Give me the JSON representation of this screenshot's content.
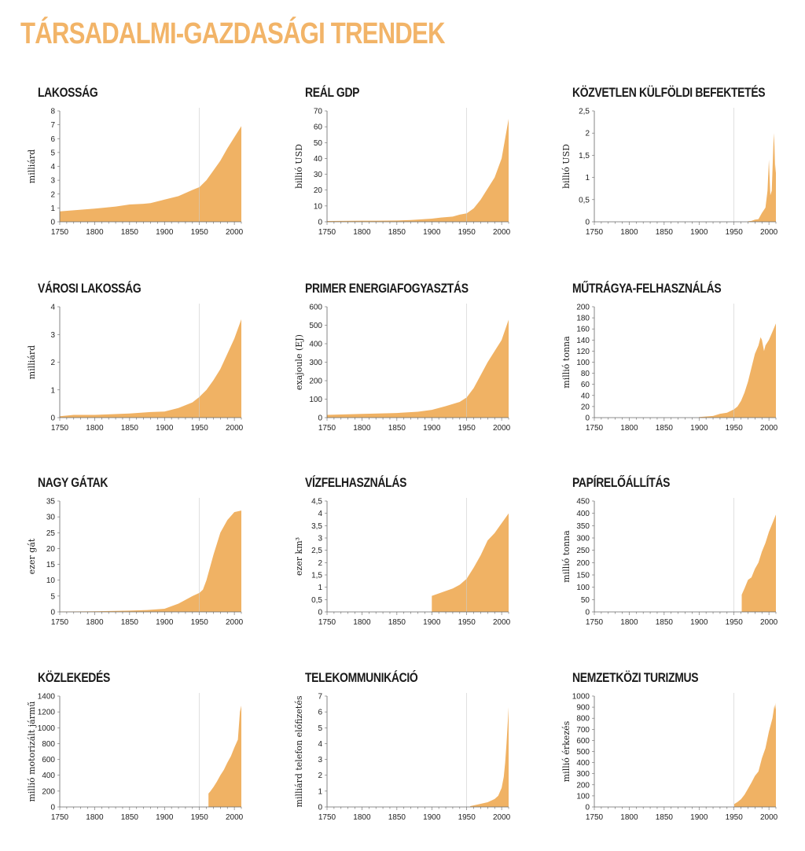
{
  "title": "TÁRSADALMI-GAZDASÁGI TRENDEK",
  "colors": {
    "title": "#f2b468",
    "fill": "#f0b264",
    "axis": "#666666",
    "ref_line": "#cccccc"
  },
  "chart_data": [
    {
      "type": "area",
      "title": "LAKOSSÁG",
      "ylabel": "milliárd",
      "xlim": [
        1750,
        2010
      ],
      "ylim": [
        0,
        8
      ],
      "xticks": [
        1750,
        1800,
        1850,
        1900,
        1950,
        2000
      ],
      "yticks": [
        {
          "v": 0,
          "label": "0"
        },
        {
          "v": 1,
          "label": "1"
        },
        {
          "v": 2,
          "label": "2"
        },
        {
          "v": 3,
          "label": "3"
        },
        {
          "v": 4,
          "label": "4"
        },
        {
          "v": 5,
          "label": "5"
        },
        {
          "v": 6,
          "label": "6"
        },
        {
          "v": 7,
          "label": "7"
        },
        {
          "v": 8,
          "label": "8"
        }
      ],
      "reference_x": 1950,
      "x": [
        1750,
        1800,
        1830,
        1850,
        1870,
        1880,
        1900,
        1920,
        1940,
        1950,
        1960,
        1970,
        1980,
        1990,
        2000,
        2010
      ],
      "y": [
        0.75,
        0.95,
        1.1,
        1.25,
        1.3,
        1.35,
        1.6,
        1.85,
        2.3,
        2.5,
        3.0,
        3.7,
        4.4,
        5.3,
        6.1,
        6.9
      ]
    },
    {
      "type": "area",
      "title": "REÁL GDP",
      "ylabel": "billió USD",
      "xlim": [
        1750,
        2010
      ],
      "ylim": [
        0,
        70
      ],
      "xticks": [
        1750,
        1800,
        1850,
        1900,
        1950,
        2000
      ],
      "yticks": [
        {
          "v": 0,
          "label": "0"
        },
        {
          "v": 10,
          "label": "10"
        },
        {
          "v": 20,
          "label": "20"
        },
        {
          "v": 30,
          "label": "30"
        },
        {
          "v": 40,
          "label": "40"
        },
        {
          "v": 50,
          "label": "50"
        },
        {
          "v": 60,
          "label": "60"
        },
        {
          "v": 70,
          "label": "70"
        }
      ],
      "reference_x": 1950,
      "x": [
        1750,
        1800,
        1820,
        1850,
        1870,
        1900,
        1913,
        1930,
        1940,
        1950,
        1960,
        1970,
        1980,
        1990,
        2000,
        2010
      ],
      "y": [
        0.5,
        0.7,
        0.7,
        0.8,
        1.1,
        2.0,
        2.7,
        3.3,
        4.5,
        5.3,
        8.5,
        14,
        21,
        28,
        40,
        65
      ]
    },
    {
      "type": "area",
      "title": "KÖZVETLEN KÜLFÖLDI BEFEKTETÉS",
      "ylabel": "billió USD",
      "xlim": [
        1750,
        2010
      ],
      "ylim": [
        0,
        2.5
      ],
      "xticks": [
        1750,
        1800,
        1850,
        1900,
        1950,
        2000
      ],
      "yticks": [
        {
          "v": 0,
          "label": "0"
        },
        {
          "v": 0.5,
          "label": "0,5"
        },
        {
          "v": 1,
          "label": "1"
        },
        {
          "v": 1.5,
          "label": "1,5"
        },
        {
          "v": 2,
          "label": "2"
        },
        {
          "v": 2.5,
          "label": "2,5"
        }
      ],
      "reference_x": 1950,
      "x": [
        1970,
        1975,
        1980,
        1985,
        1990,
        1995,
        1998,
        2000,
        2002,
        2004,
        2007,
        2008,
        2009,
        2010
      ],
      "y": [
        0.01,
        0.02,
        0.05,
        0.06,
        0.2,
        0.32,
        0.7,
        1.4,
        0.6,
        0.7,
        2.0,
        1.7,
        1.1,
        1.3
      ]
    },
    {
      "type": "area",
      "title": "VÁROSI LAKOSSÁG",
      "ylabel": "milliárd",
      "xlim": [
        1750,
        2010
      ],
      "ylim": [
        0,
        4
      ],
      "xticks": [
        1750,
        1800,
        1850,
        1900,
        1950,
        2000
      ],
      "yticks": [
        {
          "v": 0,
          "label": "0"
        },
        {
          "v": 1,
          "label": "1"
        },
        {
          "v": 2,
          "label": "2"
        },
        {
          "v": 3,
          "label": "3"
        },
        {
          "v": 4,
          "label": "4"
        }
      ],
      "reference_x": 1950,
      "x": [
        1750,
        1770,
        1800,
        1850,
        1880,
        1900,
        1920,
        1940,
        1950,
        1960,
        1970,
        1980,
        1990,
        2000,
        2010
      ],
      "y": [
        0.05,
        0.1,
        0.1,
        0.15,
        0.2,
        0.22,
        0.35,
        0.55,
        0.75,
        1.0,
        1.35,
        1.75,
        2.3,
        2.85,
        3.55
      ]
    },
    {
      "type": "area",
      "title": "PRIMER ENERGIAFOGYASZTÁS",
      "ylabel": "exajoule (EJ)",
      "xlim": [
        1750,
        2010
      ],
      "ylim": [
        0,
        600
      ],
      "xticks": [
        1750,
        1800,
        1850,
        1900,
        1950,
        2000
      ],
      "yticks": [
        {
          "v": 0,
          "label": "0"
        },
        {
          "v": 100,
          "label": "100"
        },
        {
          "v": 200,
          "label": "200"
        },
        {
          "v": 300,
          "label": "300"
        },
        {
          "v": 400,
          "label": "400"
        },
        {
          "v": 500,
          "label": "500"
        },
        {
          "v": 600,
          "label": "600"
        }
      ],
      "reference_x": 1950,
      "x": [
        1750,
        1800,
        1850,
        1880,
        1900,
        1920,
        1940,
        1950,
        1960,
        1970,
        1980,
        1990,
        2000,
        2010
      ],
      "y": [
        15,
        20,
        25,
        32,
        42,
        62,
        85,
        110,
        160,
        230,
        300,
        360,
        420,
        530
      ]
    },
    {
      "type": "area",
      "title": "MŰTRÁGYA-FELHASZNÁLÁS",
      "ylabel": "millió tonna",
      "xlim": [
        1750,
        2010
      ],
      "ylim": [
        0,
        200
      ],
      "xticks": [
        1750,
        1800,
        1850,
        1900,
        1950,
        2000
      ],
      "yticks": [
        {
          "v": 0,
          "label": "0"
        },
        {
          "v": 20,
          "label": "20"
        },
        {
          "v": 40,
          "label": "40"
        },
        {
          "v": 60,
          "label": "60"
        },
        {
          "v": 80,
          "label": "80"
        },
        {
          "v": 100,
          "label": "100"
        },
        {
          "v": 120,
          "label": "120"
        },
        {
          "v": 140,
          "label": "140"
        },
        {
          "v": 160,
          "label": "160"
        },
        {
          "v": 180,
          "label": "180"
        },
        {
          "v": 200,
          "label": "200"
        }
      ],
      "reference_x": 1950,
      "x": [
        1900,
        1920,
        1930,
        1940,
        1950,
        1955,
        1960,
        1965,
        1970,
        1975,
        1980,
        1985,
        1988,
        1990,
        1993,
        1995,
        2000,
        2005,
        2010
      ],
      "y": [
        1,
        3,
        7,
        9,
        15,
        20,
        30,
        45,
        65,
        90,
        115,
        130,
        145,
        140,
        120,
        130,
        140,
        155,
        170
      ]
    },
    {
      "type": "area",
      "title": "NAGY GÁTAK",
      "ylabel": "ezer gát",
      "xlim": [
        1750,
        2010
      ],
      "ylim": [
        0,
        35
      ],
      "xticks": [
        1750,
        1800,
        1850,
        1900,
        1950,
        2000
      ],
      "yticks": [
        {
          "v": 0,
          "label": "0"
        },
        {
          "v": 5,
          "label": "5"
        },
        {
          "v": 10,
          "label": "10"
        },
        {
          "v": 15,
          "label": "15"
        },
        {
          "v": 20,
          "label": "20"
        },
        {
          "v": 25,
          "label": "25"
        },
        {
          "v": 30,
          "label": "30"
        },
        {
          "v": 35,
          "label": "35"
        }
      ],
      "reference_x": 1950,
      "x": [
        1750,
        1800,
        1850,
        1875,
        1900,
        1920,
        1940,
        1950,
        1955,
        1960,
        1970,
        1980,
        1990,
        2000,
        2010
      ],
      "y": [
        0.1,
        0.2,
        0.4,
        0.6,
        1.0,
        2.6,
        5.0,
        6.0,
        7.0,
        10.0,
        18.0,
        25.0,
        29.0,
        31.5,
        32.0
      ]
    },
    {
      "type": "area",
      "title": "VÍZFELHASZNÁLÁS",
      "ylabel": "ezer km³",
      "xlim": [
        1750,
        2010
      ],
      "ylim": [
        0,
        4.5
      ],
      "xticks": [
        1750,
        1800,
        1850,
        1900,
        1950,
        2000
      ],
      "yticks": [
        {
          "v": 0,
          "label": "0"
        },
        {
          "v": 0.5,
          "label": "0,5"
        },
        {
          "v": 1,
          "label": "1"
        },
        {
          "v": 1.5,
          "label": "1,5"
        },
        {
          "v": 2,
          "label": "2"
        },
        {
          "v": 2.5,
          "label": "2,5"
        },
        {
          "v": 3,
          "label": "3"
        },
        {
          "v": 3.5,
          "label": "3,5"
        },
        {
          "v": 4,
          "label": "4"
        },
        {
          "v": 4.5,
          "label": "4,5"
        }
      ],
      "reference_x": 1950,
      "x": [
        1900,
        1910,
        1920,
        1930,
        1940,
        1950,
        1960,
        1970,
        1980,
        1990,
        2000,
        2010
      ],
      "y": [
        0.65,
        0.75,
        0.85,
        0.95,
        1.1,
        1.35,
        1.8,
        2.3,
        2.9,
        3.2,
        3.6,
        4.0
      ]
    },
    {
      "type": "area",
      "title": "PAPÍRELŐÁLLÍTÁS",
      "ylabel": "millió tonna",
      "xlim": [
        1750,
        2010
      ],
      "ylim": [
        0,
        450
      ],
      "xticks": [
        1750,
        1800,
        1850,
        1900,
        1950,
        2000
      ],
      "yticks": [
        {
          "v": 0,
          "label": "0"
        },
        {
          "v": 50,
          "label": "50"
        },
        {
          "v": 100,
          "label": "100"
        },
        {
          "v": 150,
          "label": "150"
        },
        {
          "v": 200,
          "label": "200"
        },
        {
          "v": 250,
          "label": "250"
        },
        {
          "v": 300,
          "label": "300"
        },
        {
          "v": 350,
          "label": "350"
        },
        {
          "v": 400,
          "label": "400"
        },
        {
          "v": 450,
          "label": "450"
        }
      ],
      "reference_x": 1950,
      "x": [
        1961,
        1965,
        1970,
        1975,
        1980,
        1985,
        1990,
        1995,
        2000,
        2005,
        2010
      ],
      "y": [
        70,
        95,
        130,
        140,
        175,
        200,
        245,
        280,
        325,
        360,
        395
      ]
    },
    {
      "type": "area",
      "title": "KÖZLEKEDÉS",
      "ylabel": "millió motorizált jármű",
      "xlim": [
        1750,
        2010
      ],
      "ylim": [
        0,
        1400
      ],
      "xticks": [
        1750,
        1800,
        1850,
        1900,
        1950,
        2000
      ],
      "yticks": [
        {
          "v": 0,
          "label": "0"
        },
        {
          "v": 200,
          "label": "200"
        },
        {
          "v": 400,
          "label": "400"
        },
        {
          "v": 600,
          "label": "600"
        },
        {
          "v": 800,
          "label": "800"
        },
        {
          "v": 1000,
          "label": "1000"
        },
        {
          "v": 1200,
          "label": "1200"
        },
        {
          "v": 1400,
          "label": "1400"
        }
      ],
      "reference_x": 1950,
      "x": [
        1963,
        1965,
        1970,
        1975,
        1980,
        1985,
        1990,
        1995,
        2000,
        2005,
        2008,
        2010
      ],
      "y": [
        170,
        190,
        250,
        320,
        400,
        470,
        560,
        640,
        750,
        850,
        1200,
        1280
      ]
    },
    {
      "type": "area",
      "title": "TELEKOMMUNIKÁCIÓ",
      "ylabel": "milliárd telefon előfizetés",
      "xlim": [
        1750,
        2010
      ],
      "ylim": [
        0,
        7
      ],
      "xticks": [
        1750,
        1800,
        1850,
        1900,
        1950,
        2000
      ],
      "yticks": [
        {
          "v": 0,
          "label": "0"
        },
        {
          "v": 1,
          "label": "1"
        },
        {
          "v": 2,
          "label": "2"
        },
        {
          "v": 3,
          "label": "3"
        },
        {
          "v": 4,
          "label": "4"
        },
        {
          "v": 5,
          "label": "5"
        },
        {
          "v": 6,
          "label": "6"
        },
        {
          "v": 7,
          "label": "7"
        }
      ],
      "reference_x": 1950,
      "x": [
        1955,
        1960,
        1970,
        1980,
        1990,
        1995,
        2000,
        2003,
        2005,
        2007,
        2009,
        2010
      ],
      "y": [
        0.05,
        0.1,
        0.2,
        0.3,
        0.5,
        0.7,
        1.2,
        1.9,
        2.8,
        4.0,
        5.5,
        6.3
      ]
    },
    {
      "type": "area",
      "title": "NEMZETKÖZI TURIZMUS",
      "ylabel": "millió érkezés",
      "xlim": [
        1750,
        2010
      ],
      "ylim": [
        0,
        1000
      ],
      "xticks": [
        1750,
        1800,
        1850,
        1900,
        1950,
        2000
      ],
      "yticks": [
        {
          "v": 0,
          "label": "0"
        },
        {
          "v": 100,
          "label": "100"
        },
        {
          "v": 200,
          "label": "200"
        },
        {
          "v": 300,
          "label": "300"
        },
        {
          "v": 400,
          "label": "400"
        },
        {
          "v": 500,
          "label": "500"
        },
        {
          "v": 600,
          "label": "600"
        },
        {
          "v": 700,
          "label": "700"
        },
        {
          "v": 800,
          "label": "800"
        },
        {
          "v": 900,
          "label": "900"
        },
        {
          "v": 1000,
          "label": "1000"
        }
      ],
      "reference_x": 1950,
      "x": [
        1950,
        1955,
        1960,
        1965,
        1970,
        1975,
        1980,
        1985,
        1990,
        1995,
        2000,
        2005,
        2008,
        2009,
        2010
      ],
      "y": [
        25,
        45,
        70,
        110,
        165,
        220,
        280,
        320,
        440,
        530,
        680,
        800,
        920,
        880,
        940
      ]
    }
  ]
}
